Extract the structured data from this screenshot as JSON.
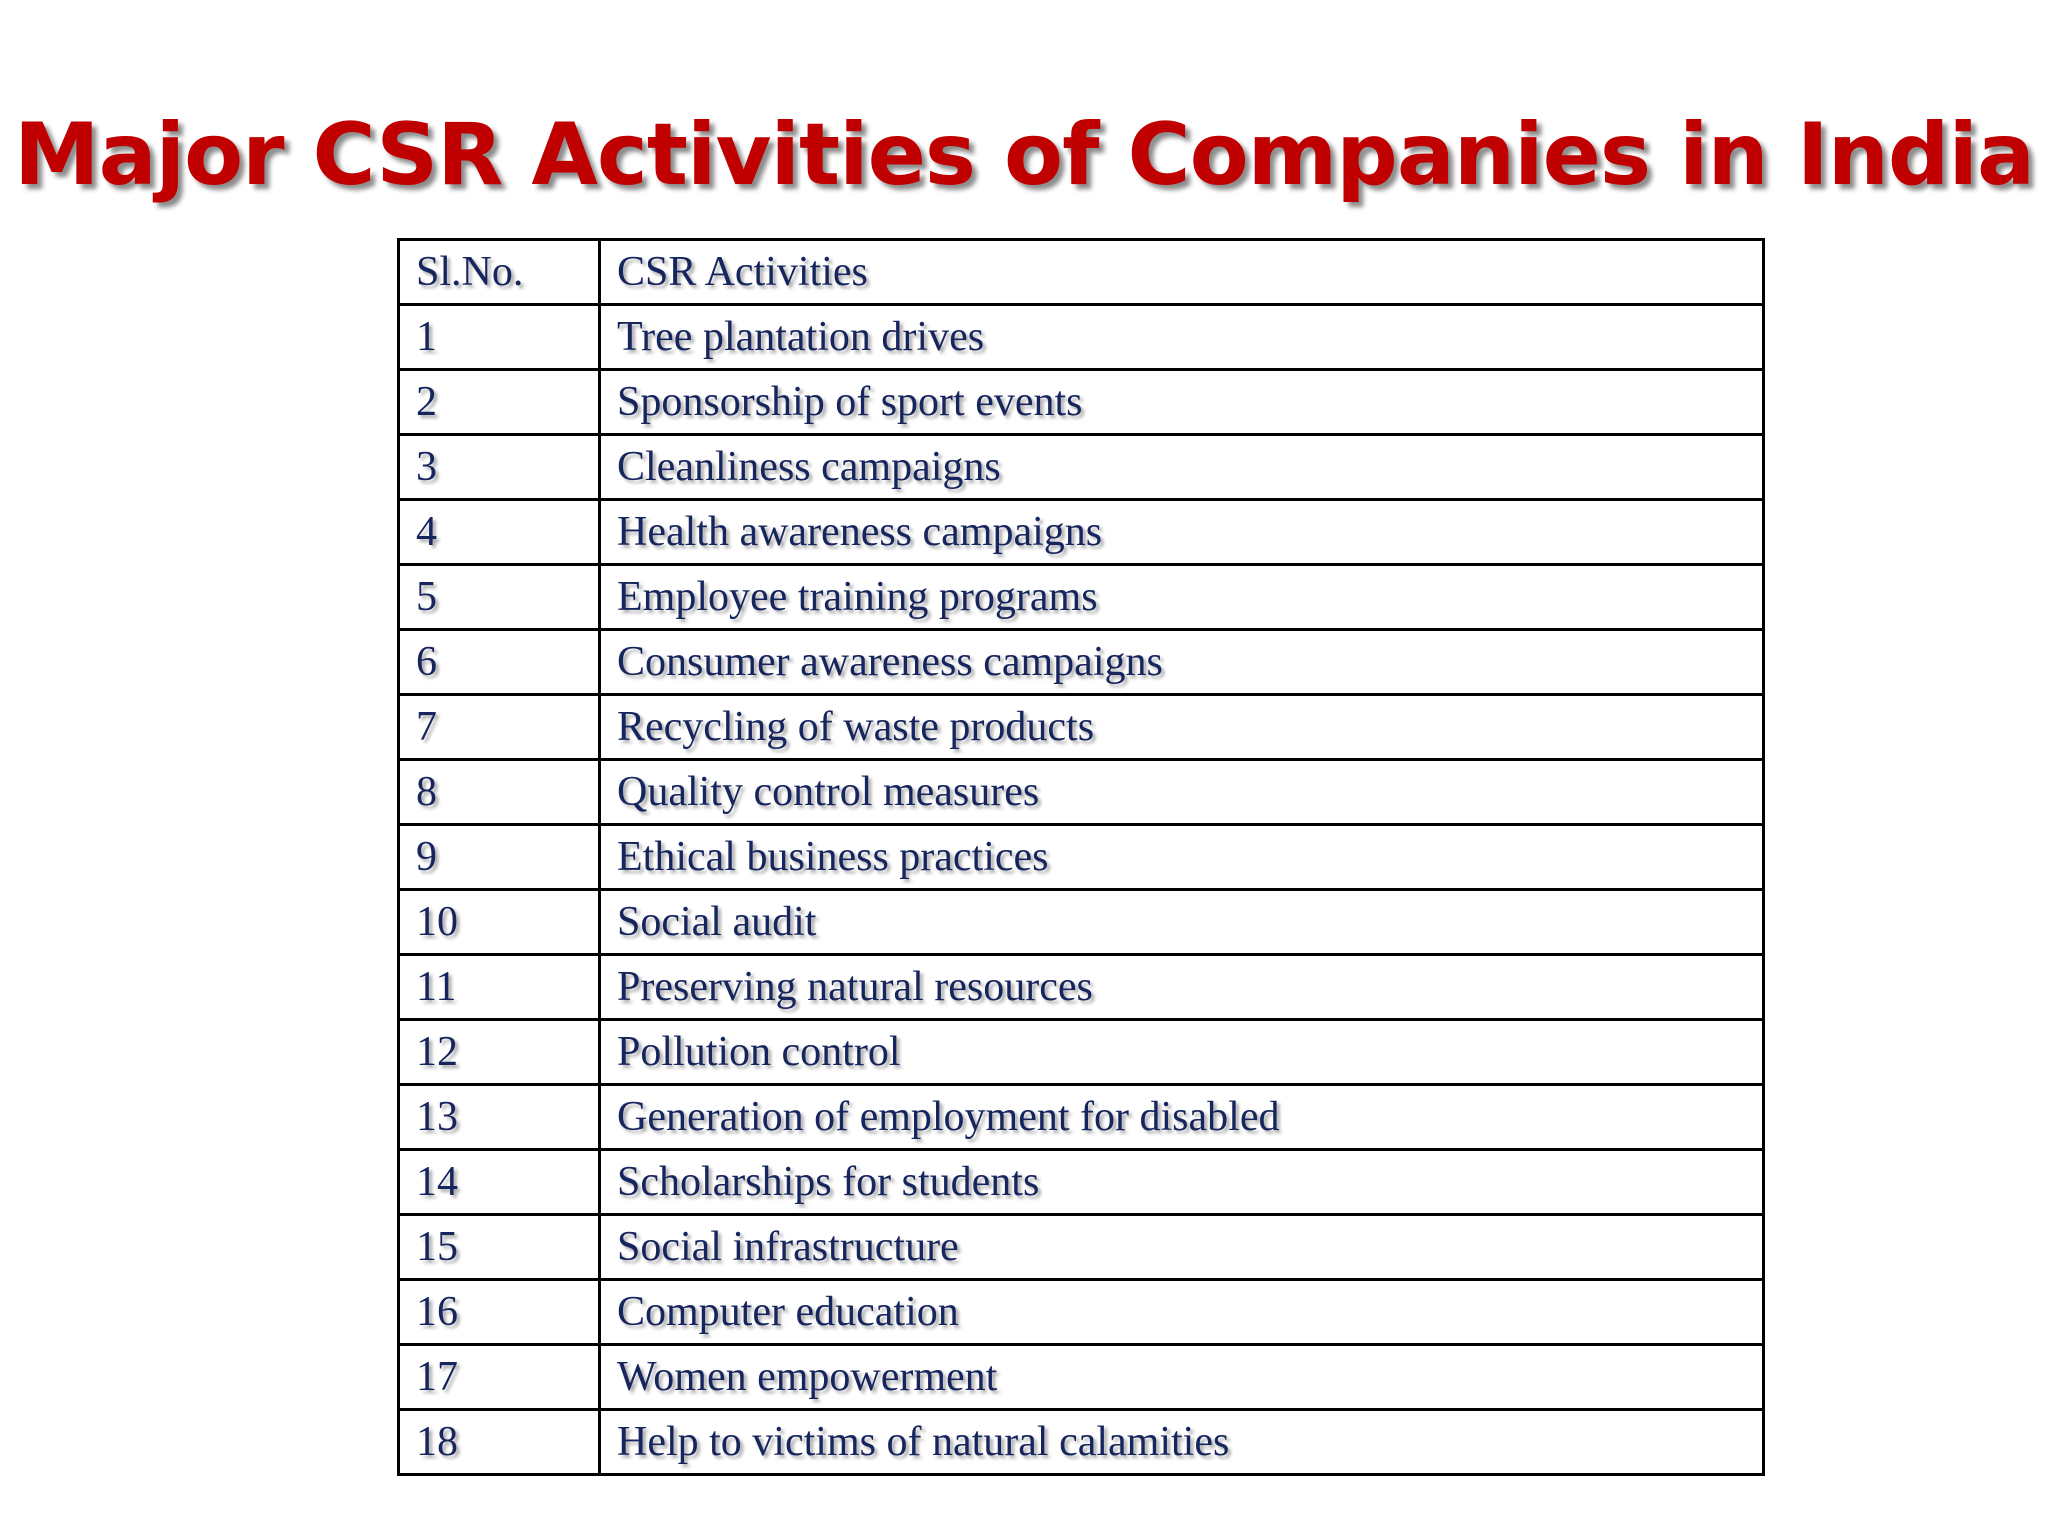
{
  "title": "Major CSR Activities of Companies in India",
  "table": {
    "headers": [
      "Sl.No.",
      "CSR Activities"
    ],
    "rows": [
      [
        "1",
        "Tree plantation drives"
      ],
      [
        "2",
        "Sponsorship of sport events"
      ],
      [
        "3",
        "Cleanliness campaigns"
      ],
      [
        "4",
        "Health awareness campaigns"
      ],
      [
        "5",
        "Employee training programs"
      ],
      [
        "6",
        "Consumer awareness campaigns"
      ],
      [
        "7",
        "Recycling of waste products"
      ],
      [
        "8",
        "Quality control measures"
      ],
      [
        "9",
        "Ethical business practices"
      ],
      [
        "10",
        "Social audit"
      ],
      [
        "11",
        "Preserving natural resources"
      ],
      [
        "12",
        "Pollution control"
      ],
      [
        "13",
        "Generation of employment  for disabled"
      ],
      [
        "14",
        "Scholarships for students"
      ],
      [
        "15",
        "Social infrastructure"
      ],
      [
        "16",
        "Computer education"
      ],
      [
        "17",
        "Women empowerment"
      ],
      [
        "18",
        "Help to victims of natural calamities"
      ]
    ]
  },
  "colors": {
    "title": "#c00000",
    "text": "#17255e",
    "border": "#000000"
  }
}
